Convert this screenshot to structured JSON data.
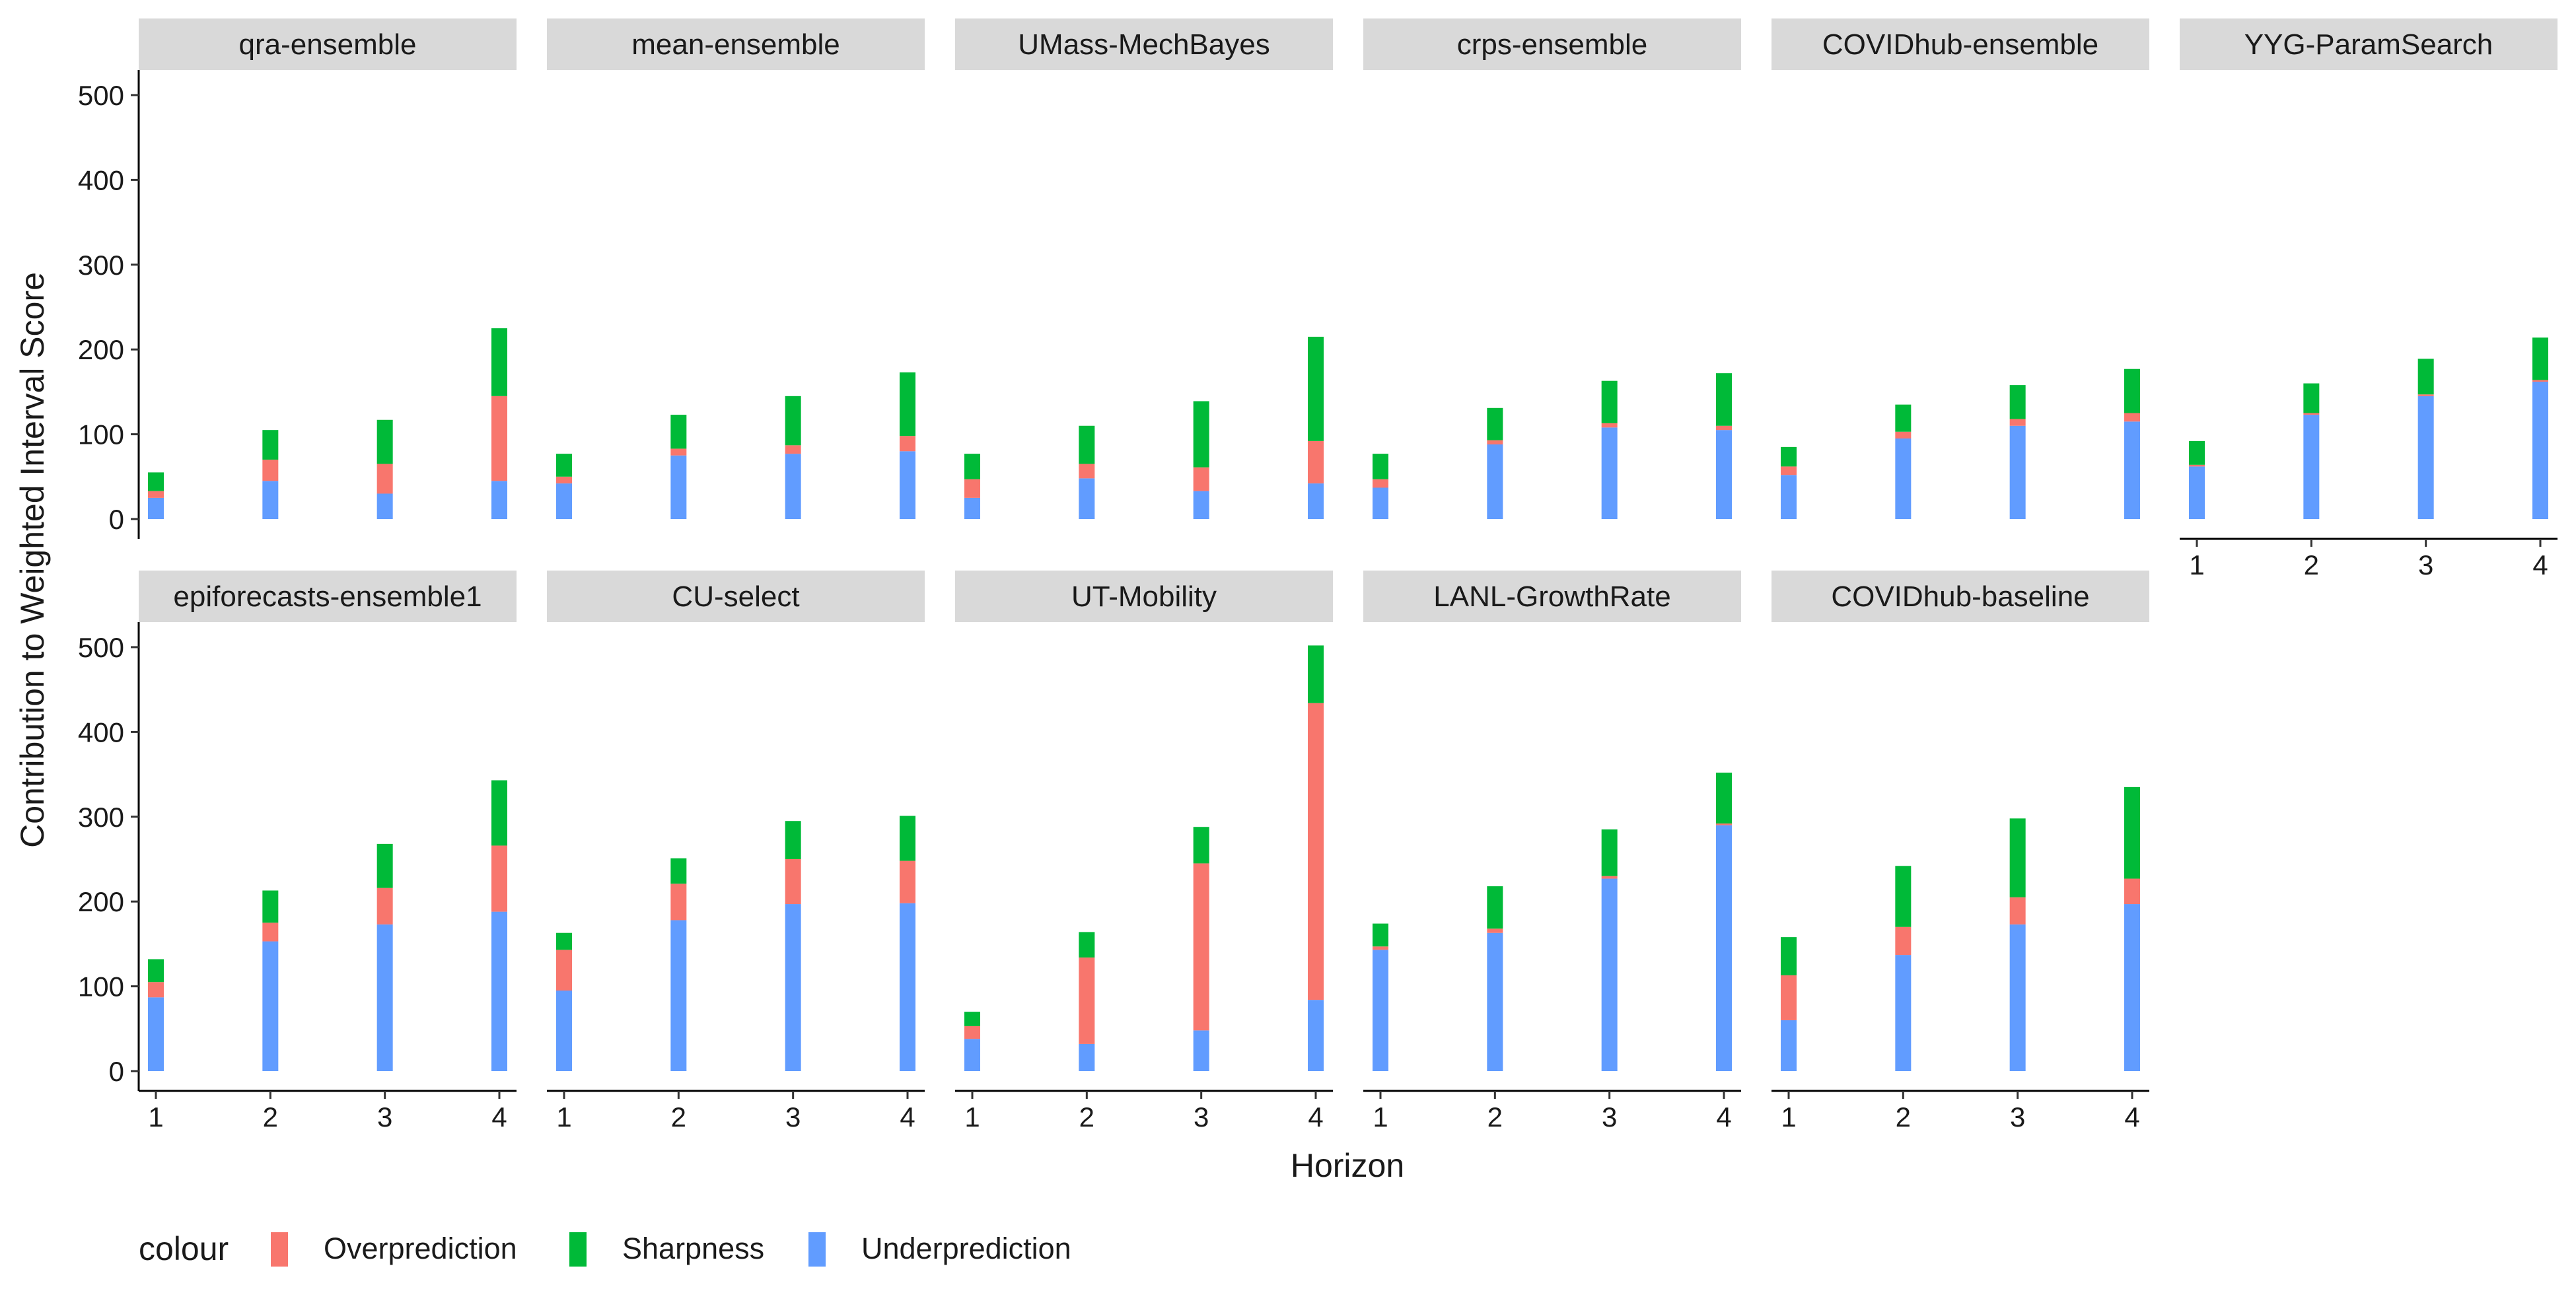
{
  "chart_data": {
    "type": "bar",
    "stacked": true,
    "facet_layout": "2 rows x 6 columns, free x-axis per row",
    "xlabel": "Horizon",
    "ylabel": "Contribution to Weighted Interval Score",
    "ylim": [
      0,
      500
    ],
    "y_ticks": [
      0,
      100,
      200,
      300,
      400,
      500
    ],
    "x_ticks": [
      1,
      2,
      3,
      4
    ],
    "grid": false,
    "legend": {
      "title": "colour",
      "position": "bottom-left",
      "entries": [
        "Overprediction",
        "Sharpness",
        "Underprediction"
      ]
    },
    "series_colors": {
      "Overprediction": "#F8766D",
      "Sharpness": "#00BA38",
      "Underprediction": "#619CFF"
    },
    "strip_color": "#D9D9D9",
    "stack_order": [
      "Underprediction",
      "Overprediction",
      "Sharpness"
    ],
    "panels": [
      {
        "title": "qra-ensemble",
        "x": [
          1,
          2,
          3,
          4
        ],
        "series": [
          {
            "name": "Underprediction",
            "values": [
              25,
              45,
              30,
              45
            ]
          },
          {
            "name": "Overprediction",
            "values": [
              8,
              25,
              35,
              100
            ]
          },
          {
            "name": "Sharpness",
            "values": [
              22,
              35,
              52,
              80
            ]
          }
        ]
      },
      {
        "title": "mean-ensemble",
        "x": [
          1,
          2,
          3,
          4
        ],
        "series": [
          {
            "name": "Underprediction",
            "values": [
              42,
              75,
              77,
              80
            ]
          },
          {
            "name": "Overprediction",
            "values": [
              8,
              8,
              10,
              18
            ]
          },
          {
            "name": "Sharpness",
            "values": [
              27,
              40,
              58,
              75
            ]
          }
        ]
      },
      {
        "title": "UMass-MechBayes",
        "x": [
          1,
          2,
          3,
          4
        ],
        "series": [
          {
            "name": "Underprediction",
            "values": [
              25,
              48,
              33,
              42
            ]
          },
          {
            "name": "Overprediction",
            "values": [
              22,
              17,
              28,
              50
            ]
          },
          {
            "name": "Sharpness",
            "values": [
              30,
              45,
              78,
              123
            ]
          }
        ]
      },
      {
        "title": "crps-ensemble",
        "x": [
          1,
          2,
          3,
          4
        ],
        "series": [
          {
            "name": "Underprediction",
            "values": [
              37,
              88,
              108,
              105
            ]
          },
          {
            "name": "Overprediction",
            "values": [
              10,
              5,
              5,
              5
            ]
          },
          {
            "name": "Sharpness",
            "values": [
              30,
              38,
              50,
              62
            ]
          }
        ]
      },
      {
        "title": "COVIDhub-ensemble",
        "x": [
          1,
          2,
          3,
          4
        ],
        "series": [
          {
            "name": "Underprediction",
            "values": [
              52,
              95,
              110,
              115
            ]
          },
          {
            "name": "Overprediction",
            "values": [
              10,
              8,
              8,
              10
            ]
          },
          {
            "name": "Sharpness",
            "values": [
              23,
              32,
              40,
              52
            ]
          }
        ]
      },
      {
        "title": "YYG-ParamSearch",
        "x": [
          1,
          2,
          3,
          4
        ],
        "series": [
          {
            "name": "Underprediction",
            "values": [
              62,
              123,
              145,
              162
            ]
          },
          {
            "name": "Overprediction",
            "values": [
              2,
              2,
              2,
              2
            ]
          },
          {
            "name": "Sharpness",
            "values": [
              28,
              35,
              42,
              50
            ]
          }
        ]
      },
      {
        "title": "epiforecasts-ensemble1",
        "x": [
          1,
          2,
          3,
          4
        ],
        "series": [
          {
            "name": "Underprediction",
            "values": [
              87,
              153,
              173,
              188
            ]
          },
          {
            "name": "Overprediction",
            "values": [
              18,
              22,
              43,
              78
            ]
          },
          {
            "name": "Sharpness",
            "values": [
              27,
              38,
              52,
              77
            ]
          }
        ]
      },
      {
        "title": "CU-select",
        "x": [
          1,
          2,
          3,
          4
        ],
        "series": [
          {
            "name": "Underprediction",
            "values": [
              95,
              178,
              197,
              198
            ]
          },
          {
            "name": "Overprediction",
            "values": [
              48,
              43,
              53,
              50
            ]
          },
          {
            "name": "Sharpness",
            "values": [
              20,
              30,
              45,
              53
            ]
          }
        ]
      },
      {
        "title": "UT-Mobility",
        "x": [
          1,
          2,
          3,
          4
        ],
        "series": [
          {
            "name": "Underprediction",
            "values": [
              38,
              32,
              48,
              84
            ]
          },
          {
            "name": "Overprediction",
            "values": [
              15,
              102,
              197,
              350
            ]
          },
          {
            "name": "Sharpness",
            "values": [
              17,
              30,
              43,
              68
            ]
          }
        ]
      },
      {
        "title": "LANL-GrowthRate",
        "x": [
          1,
          2,
          3,
          4
        ],
        "series": [
          {
            "name": "Underprediction",
            "values": [
              143,
              163,
              227,
              290
            ]
          },
          {
            "name": "Overprediction",
            "values": [
              4,
              5,
              3,
              2
            ]
          },
          {
            "name": "Sharpness",
            "values": [
              27,
              50,
              55,
              60
            ]
          }
        ]
      },
      {
        "title": "COVIDhub-baseline",
        "x": [
          1,
          2,
          3,
          4
        ],
        "series": [
          {
            "name": "Underprediction",
            "values": [
              60,
              137,
              173,
              197
            ]
          },
          {
            "name": "Overprediction",
            "values": [
              53,
              33,
              32,
              30
            ]
          },
          {
            "name": "Sharpness",
            "values": [
              45,
              72,
              93,
              108
            ]
          }
        ]
      }
    ]
  }
}
